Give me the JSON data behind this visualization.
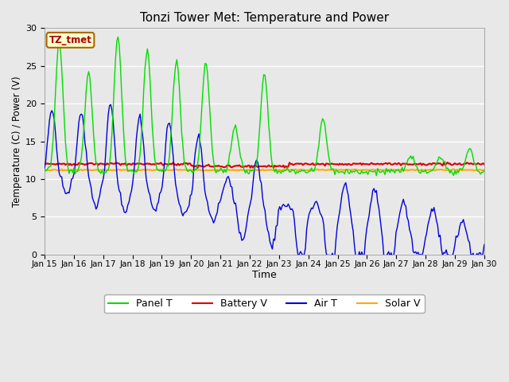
{
  "title": "Tonzi Tower Met: Temperature and Power",
  "xlabel": "Time",
  "ylabel": "Temperature (C) / Power (V)",
  "ylim": [
    0,
    30
  ],
  "yticks": [
    0,
    5,
    10,
    15,
    20,
    25,
    30
  ],
  "xtick_labels": [
    "Jan 15",
    "Jan 16",
    "Jan 17",
    "Jan 18",
    "Jan 19",
    "Jan 20",
    "Jan 21",
    "Jan 22",
    "Jan 23",
    "Jan 24",
    "Jan 25",
    "Jan 26",
    "Jan 27",
    "Jan 28",
    "Jan 29",
    "Jan 30"
  ],
  "panel_t_color": "#00dd00",
  "battery_v_color": "#dd0000",
  "air_t_color": "#0000dd",
  "solar_v_color": "#ffaa00",
  "bg_color": "#e8e8e8",
  "plot_bg_color": "#e8e8e8",
  "legend_label_box": "TZ_tmet",
  "legend_label_box_color": "#aa0000",
  "legend_label_box_bg": "#ffffcc",
  "legend_label_box_edge": "#aa6600"
}
